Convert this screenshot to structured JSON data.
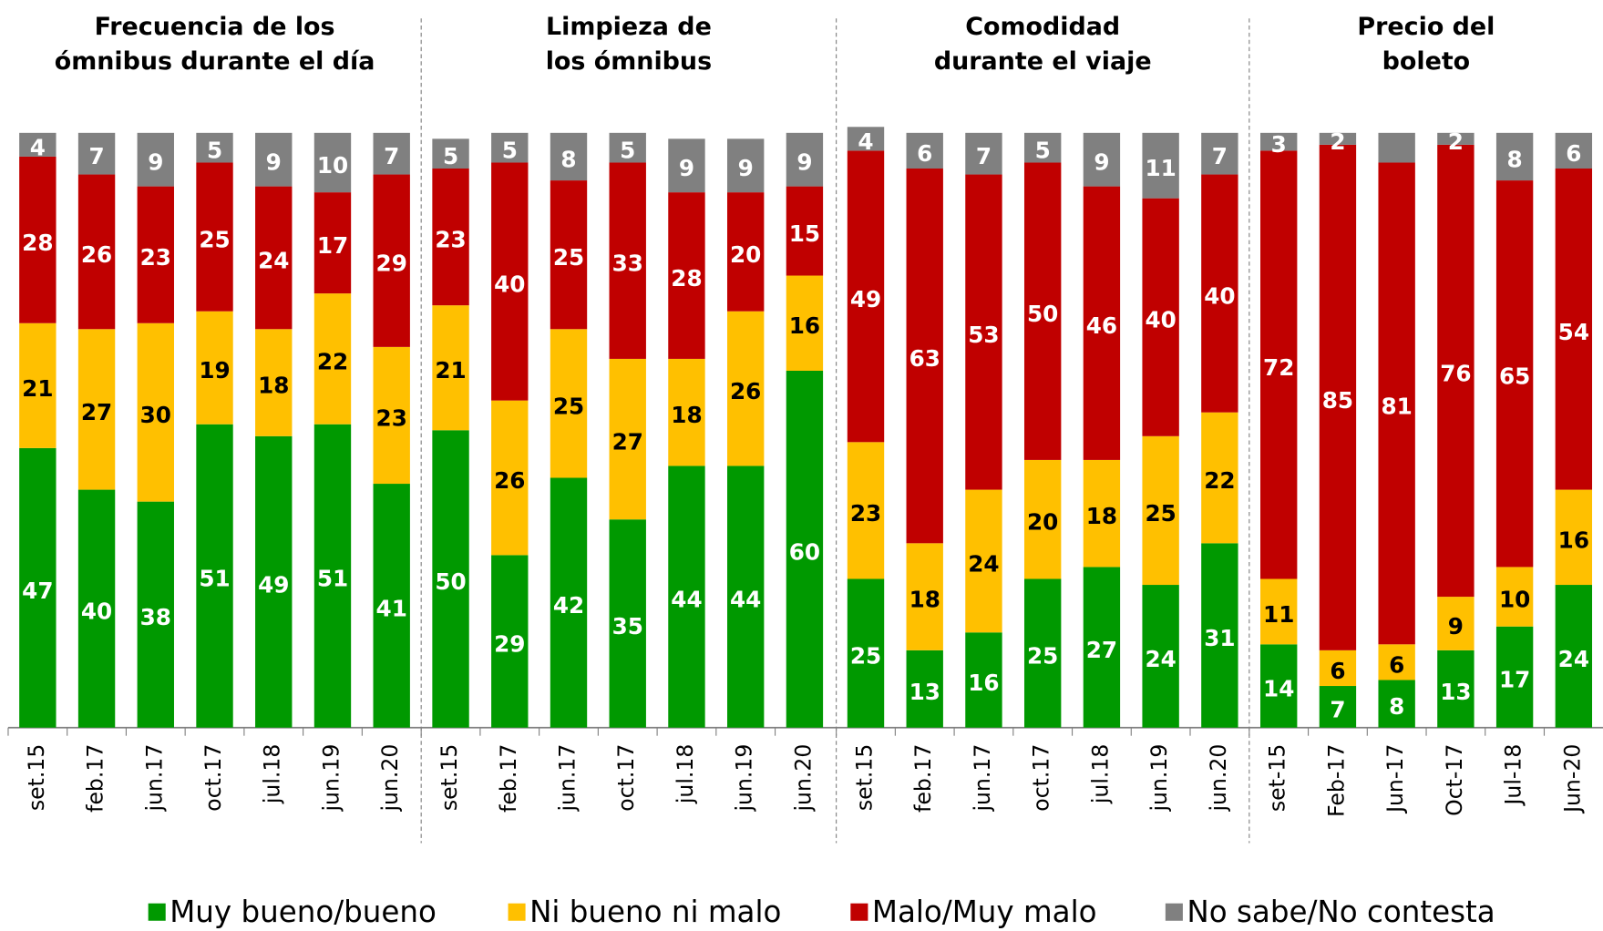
{
  "chart_data": [
    {
      "type": "bar",
      "stacked": true,
      "title": [
        "Frecuencia de los",
        "ómnibus durante el día"
      ],
      "categories": [
        "set.15",
        "feb.17",
        "jun.17",
        "oct.17",
        "jul.18",
        "jun.19",
        "jun.20"
      ],
      "ylim": [
        0,
        100
      ],
      "series": [
        {
          "name": "Muy bueno/bueno",
          "color": "#009900",
          "values": [
            47,
            40,
            38,
            51,
            49,
            51,
            41
          ]
        },
        {
          "name": "Ni bueno ni malo",
          "color": "#ffc000",
          "values": [
            21,
            27,
            30,
            19,
            18,
            22,
            23
          ]
        },
        {
          "name": "Malo/Muy malo",
          "color": "#c00000",
          "values": [
            28,
            26,
            23,
            25,
            24,
            17,
            29
          ]
        },
        {
          "name": "No sabe/No contesta",
          "color": "#808080",
          "values": [
            4,
            7,
            9,
            5,
            9,
            10,
            7
          ]
        }
      ]
    },
    {
      "type": "bar",
      "stacked": true,
      "title": [
        "Limpieza de",
        "los ómnibus"
      ],
      "categories": [
        "set.15",
        "feb.17",
        "jun.17",
        "oct.17",
        "jul.18",
        "jun.19",
        "jun.20"
      ],
      "ylim": [
        0,
        100
      ],
      "series": [
        {
          "name": "Muy bueno/bueno",
          "color": "#009900",
          "values": [
            50,
            29,
            42,
            35,
            44,
            44,
            60
          ]
        },
        {
          "name": "Ni bueno ni malo",
          "color": "#ffc000",
          "values": [
            21,
            26,
            25,
            27,
            18,
            26,
            16
          ]
        },
        {
          "name": "Malo/Muy malo",
          "color": "#c00000",
          "values": [
            23,
            40,
            25,
            33,
            28,
            20,
            15
          ]
        },
        {
          "name": "No sabe/No contesta",
          "color": "#808080",
          "values": [
            5,
            5,
            8,
            5,
            9,
            9,
            9
          ]
        }
      ]
    },
    {
      "type": "bar",
      "stacked": true,
      "title": [
        "Comodidad",
        "durante el viaje"
      ],
      "categories": [
        "set.15",
        "feb.17",
        "jun.17",
        "oct.17",
        "jul.18",
        "jun.19",
        "jun.20"
      ],
      "ylim": [
        0,
        100
      ],
      "series": [
        {
          "name": "Muy bueno/bueno",
          "color": "#009900",
          "values": [
            25,
            13,
            16,
            25,
            27,
            24,
            31
          ]
        },
        {
          "name": "Ni bueno ni malo",
          "color": "#ffc000",
          "values": [
            23,
            18,
            24,
            20,
            18,
            25,
            22
          ]
        },
        {
          "name": "Malo/Muy malo",
          "color": "#c00000",
          "values": [
            49,
            63,
            53,
            50,
            46,
            40,
            40
          ]
        },
        {
          "name": "No sabe/No contesta",
          "color": "#808080",
          "values": [
            4,
            6,
            7,
            5,
            9,
            11,
            7
          ]
        }
      ]
    },
    {
      "type": "bar",
      "stacked": true,
      "title": [
        "Precio del",
        "boleto"
      ],
      "categories": [
        "set-15",
        "Feb-17",
        "Jun-17",
        "Oct-17",
        "Jul-18",
        "Jun-20"
      ],
      "ylim": [
        0,
        100
      ],
      "series": [
        {
          "name": "Muy bueno/bueno",
          "color": "#009900",
          "values": [
            14,
            7,
            8,
            13,
            17,
            24
          ]
        },
        {
          "name": "Ni bueno ni malo",
          "color": "#ffc000",
          "values": [
            11,
            6,
            6,
            9,
            10,
            16
          ]
        },
        {
          "name": "Malo/Muy malo",
          "color": "#c00000",
          "values": [
            72,
            85,
            81,
            76,
            65,
            54
          ]
        },
        {
          "name": "No sabe/No contesta",
          "color": "#808080",
          "values": [
            3,
            2,
            5,
            2,
            8,
            6
          ],
          "value_labels": [
            "3",
            "2",
            null,
            "2",
            "8",
            "6"
          ]
        }
      ]
    }
  ]
}
